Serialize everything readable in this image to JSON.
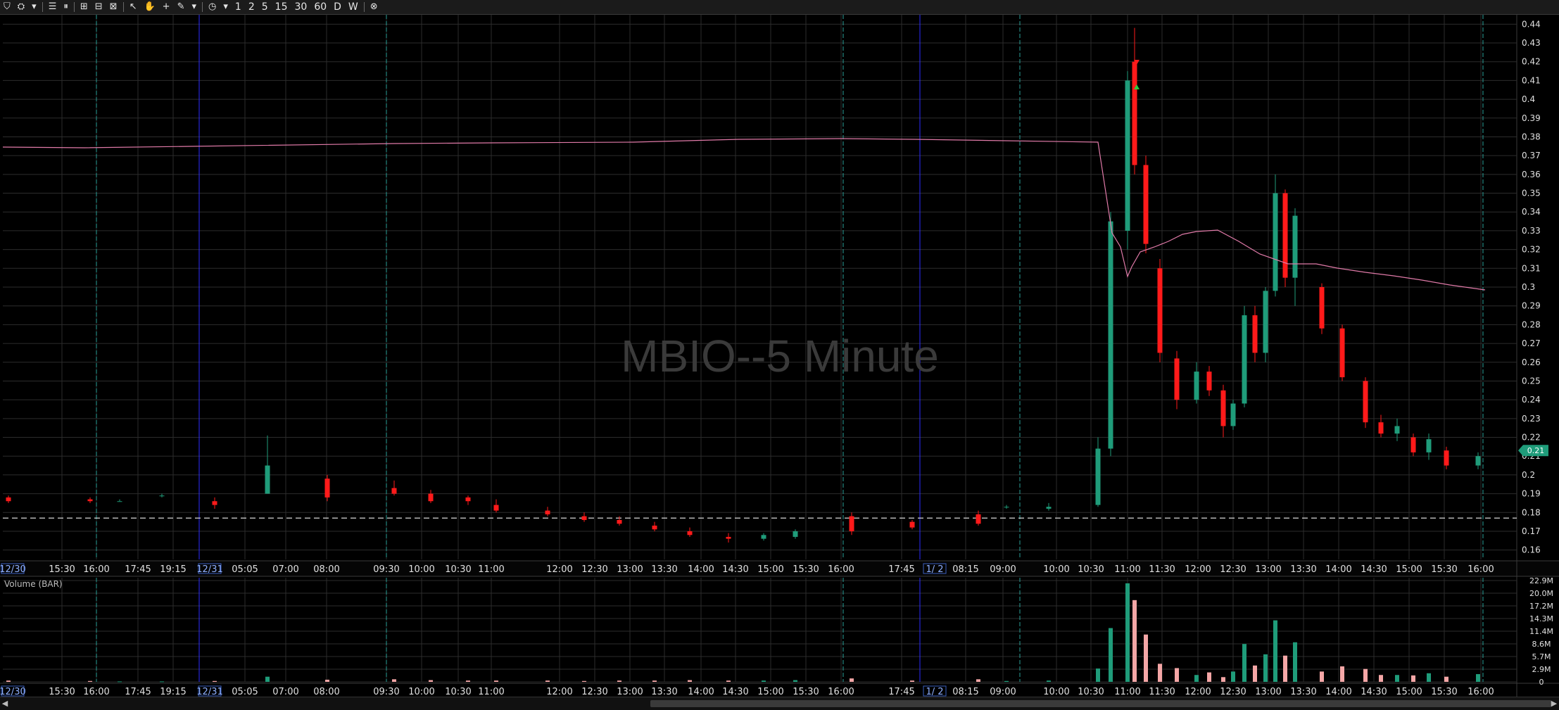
{
  "toolbar": {
    "items": [
      "⛉",
      "⛭",
      "▾",
      "☰",
      "⏸",
      "⊞",
      "⊟",
      "⊠",
      "↖",
      "✋",
      "+",
      "✎",
      "▾",
      "◷",
      "▾"
    ],
    "timeframes": [
      "1",
      "2",
      "5",
      "15",
      "30",
      "60",
      "D",
      "W"
    ],
    "close": "⊗"
  },
  "chart_title": "MBIO--5 Minute",
  "volume_label": "Volume (BAR)",
  "last_price_label": "0.21",
  "price_ticks": [
    "0.44",
    "0.43",
    "0.42",
    "0.41",
    "0.4",
    "0.39",
    "0.38",
    "0.37",
    "0.36",
    "0.35",
    "0.34",
    "0.33",
    "0.32",
    "0.31",
    "0.3",
    "0.29",
    "0.28",
    "0.27",
    "0.26",
    "0.25",
    "0.24",
    "0.23",
    "0.22",
    "0.21",
    "0.2",
    "0.19",
    "0.18",
    "0.17",
    "0.16"
  ],
  "volume_ticks": [
    "22.9M",
    "20.0M",
    "17.2M",
    "14.3M",
    "11.4M",
    "8.6M",
    "5.7M",
    "2.9M",
    "0"
  ],
  "time_labels": [
    {
      "t": "12/30",
      "boxed": true
    },
    {
      "t": "15:30"
    },
    {
      "t": "16:00"
    },
    {
      "t": "17:45"
    },
    {
      "t": "19:15"
    },
    {
      "t": "12/31",
      "boxed": true
    },
    {
      "t": "05:05"
    },
    {
      "t": "07:00"
    },
    {
      "t": "08:00"
    },
    {
      "t": "09:30"
    },
    {
      "t": "10:00"
    },
    {
      "t": "10:30"
    },
    {
      "t": "11:00"
    },
    {
      "t": "12:00"
    },
    {
      "t": "12:30"
    },
    {
      "t": "13:00"
    },
    {
      "t": "13:30"
    },
    {
      "t": "14:00"
    },
    {
      "t": "14:30"
    },
    {
      "t": "15:00"
    },
    {
      "t": "15:30"
    },
    {
      "t": "16:00"
    },
    {
      "t": "17:45"
    },
    {
      "t": "1/ 2",
      "boxed": true
    },
    {
      "t": "08:15"
    },
    {
      "t": "09:00"
    },
    {
      "t": "10:00"
    },
    {
      "t": "10:30"
    },
    {
      "t": "11:00"
    },
    {
      "t": "11:30"
    },
    {
      "t": "12:00"
    },
    {
      "t": "12:30"
    },
    {
      "t": "13:00"
    },
    {
      "t": "13:30"
    },
    {
      "t": "14:00"
    },
    {
      "t": "14:30"
    },
    {
      "t": "15:00"
    },
    {
      "t": "15:30"
    },
    {
      "t": "16:00"
    }
  ],
  "colors": {
    "up": "#1f9c7a",
    "down": "#ff1a1a",
    "vol_up": "#1f9c7a",
    "vol_down": "#f4a6a6",
    "vwap": "#e07aa8",
    "grid": "#2c2c2c",
    "session": "#2aa198",
    "day": "#2d2dff",
    "axis_text": "#e0e0e0",
    "watermark": "#3a3a3a"
  },
  "chart_data": {
    "type": "candlestick",
    "title": "MBIO--5 Minute",
    "ylim": [
      0.155,
      0.445
    ],
    "volume_ylim": [
      0,
      22.9
    ],
    "volume_unit": "M",
    "reference_price": 0.177,
    "candles": [
      {
        "t": "12/30 15:30",
        "o": 0.188,
        "h": 0.189,
        "l": 0.185,
        "c": 0.186
      },
      {
        "t": "12/30 16:00",
        "o": 0.187,
        "h": 0.188,
        "l": 0.185,
        "c": 0.186
      },
      {
        "t": "12/30 17:45",
        "o": 0.186,
        "h": 0.187,
        "l": 0.186,
        "c": 0.186
      },
      {
        "t": "12/30 19:15",
        "o": 0.189,
        "h": 0.19,
        "l": 0.188,
        "c": 0.189
      },
      {
        "t": "12/31 05:05",
        "o": 0.186,
        "h": 0.188,
        "l": 0.182,
        "c": 0.184
      },
      {
        "t": "12/31 07:00",
        "o": 0.19,
        "h": 0.221,
        "l": 0.19,
        "c": 0.205
      },
      {
        "t": "12/31 08:00",
        "o": 0.198,
        "h": 0.2,
        "l": 0.186,
        "c": 0.188
      },
      {
        "t": "12/31 09:30",
        "o": 0.193,
        "h": 0.197,
        "l": 0.189,
        "c": 0.19
      },
      {
        "t": "12/31 10:00",
        "o": 0.19,
        "h": 0.192,
        "l": 0.185,
        "c": 0.186
      },
      {
        "t": "12/31 10:30",
        "o": 0.188,
        "h": 0.189,
        "l": 0.184,
        "c": 0.186
      },
      {
        "t": "12/31 11:00",
        "o": 0.184,
        "h": 0.187,
        "l": 0.18,
        "c": 0.181
      },
      {
        "t": "12/31 12:00",
        "o": 0.181,
        "h": 0.183,
        "l": 0.178,
        "c": 0.179
      },
      {
        "t": "12/31 12:30",
        "o": 0.178,
        "h": 0.18,
        "l": 0.175,
        "c": 0.176
      },
      {
        "t": "12/31 13:00",
        "o": 0.176,
        "h": 0.178,
        "l": 0.173,
        "c": 0.174
      },
      {
        "t": "12/31 13:30",
        "o": 0.173,
        "h": 0.175,
        "l": 0.17,
        "c": 0.171
      },
      {
        "t": "12/31 14:00",
        "o": 0.17,
        "h": 0.172,
        "l": 0.167,
        "c": 0.168
      },
      {
        "t": "12/31 14:30",
        "o": 0.167,
        "h": 0.169,
        "l": 0.164,
        "c": 0.166
      },
      {
        "t": "12/31 15:00",
        "o": 0.166,
        "h": 0.169,
        "l": 0.165,
        "c": 0.168
      },
      {
        "t": "12/31 15:30",
        "o": 0.167,
        "h": 0.171,
        "l": 0.166,
        "c": 0.17
      },
      {
        "t": "12/31 16:00",
        "o": 0.178,
        "h": 0.18,
        "l": 0.168,
        "c": 0.17
      },
      {
        "t": "12/31 17:45",
        "o": 0.175,
        "h": 0.176,
        "l": 0.171,
        "c": 0.172
      },
      {
        "t": "1/2 08:15",
        "o": 0.179,
        "h": 0.181,
        "l": 0.173,
        "c": 0.174
      },
      {
        "t": "1/2 09:00",
        "o": 0.183,
        "h": 0.184,
        "l": 0.182,
        "c": 0.183
      },
      {
        "t": "1/2 10:00",
        "o": 0.182,
        "h": 0.185,
        "l": 0.181,
        "c": 0.183
      },
      {
        "t": "1/2 10:30",
        "o": 0.184,
        "h": 0.22,
        "l": 0.183,
        "c": 0.214
      },
      {
        "t": "1/2 10:45",
        "o": 0.214,
        "h": 0.34,
        "l": 0.21,
        "c": 0.335
      },
      {
        "t": "1/2 11:00",
        "o": 0.33,
        "h": 0.415,
        "l": 0.32,
        "c": 0.41
      },
      {
        "t": "1/2 11:05",
        "o": 0.42,
        "h": 0.438,
        "l": 0.36,
        "c": 0.365
      },
      {
        "t": "1/2 11:15",
        "o": 0.365,
        "h": 0.37,
        "l": 0.318,
        "c": 0.323
      },
      {
        "t": "1/2 11:30",
        "o": 0.31,
        "h": 0.315,
        "l": 0.26,
        "c": 0.265
      },
      {
        "t": "1/2 11:45",
        "o": 0.262,
        "h": 0.266,
        "l": 0.235,
        "c": 0.24
      },
      {
        "t": "1/2 12:00",
        "o": 0.24,
        "h": 0.26,
        "l": 0.238,
        "c": 0.255
      },
      {
        "t": "1/2 12:15",
        "o": 0.255,
        "h": 0.258,
        "l": 0.242,
        "c": 0.245
      },
      {
        "t": "1/2 12:30",
        "o": 0.245,
        "h": 0.248,
        "l": 0.22,
        "c": 0.226
      },
      {
        "t": "1/2 12:45",
        "o": 0.226,
        "h": 0.24,
        "l": 0.224,
        "c": 0.238
      },
      {
        "t": "1/2 13:00",
        "o": 0.238,
        "h": 0.29,
        "l": 0.236,
        "c": 0.285
      },
      {
        "t": "1/2 13:10",
        "o": 0.285,
        "h": 0.29,
        "l": 0.26,
        "c": 0.265
      },
      {
        "t": "1/2 13:20",
        "o": 0.265,
        "h": 0.3,
        "l": 0.26,
        "c": 0.298
      },
      {
        "t": "1/2 13:30",
        "o": 0.298,
        "h": 0.36,
        "l": 0.295,
        "c": 0.35
      },
      {
        "t": "1/2 13:40",
        "o": 0.35,
        "h": 0.352,
        "l": 0.3,
        "c": 0.305
      },
      {
        "t": "1/2 13:50",
        "o": 0.305,
        "h": 0.342,
        "l": 0.29,
        "c": 0.338
      },
      {
        "t": "1/2 14:00",
        "o": 0.3,
        "h": 0.302,
        "l": 0.275,
        "c": 0.278
      },
      {
        "t": "1/2 14:15",
        "o": 0.278,
        "h": 0.28,
        "l": 0.25,
        "c": 0.252
      },
      {
        "t": "1/2 14:30",
        "o": 0.25,
        "h": 0.252,
        "l": 0.225,
        "c": 0.228
      },
      {
        "t": "1/2 14:45",
        "o": 0.228,
        "h": 0.232,
        "l": 0.22,
        "c": 0.222
      },
      {
        "t": "1/2 15:00",
        "o": 0.222,
        "h": 0.23,
        "l": 0.218,
        "c": 0.226
      },
      {
        "t": "1/2 15:15",
        "o": 0.22,
        "h": 0.222,
        "l": 0.21,
        "c": 0.212
      },
      {
        "t": "1/2 15:30",
        "o": 0.212,
        "h": 0.222,
        "l": 0.208,
        "c": 0.219
      },
      {
        "t": "1/2 15:45",
        "o": 0.213,
        "h": 0.215,
        "l": 0.203,
        "c": 0.205
      },
      {
        "t": "1/2 16:00",
        "o": 0.205,
        "h": 0.212,
        "l": 0.203,
        "c": 0.21
      }
    ],
    "volume": [
      0.3,
      0.2,
      0.1,
      0.1,
      0.2,
      1.2,
      0.5,
      0.6,
      0.4,
      0.3,
      0.3,
      0.3,
      0.2,
      0.3,
      0.3,
      0.4,
      0.3,
      0.3,
      0.4,
      0.8,
      0.3,
      0.6,
      0.2,
      0.3,
      3.1,
      12.5,
      22.9,
      19.0,
      11.0,
      4.2,
      3.2,
      1.6,
      2.2,
      1.1,
      2.4,
      8.8,
      3.8,
      6.4,
      14.3,
      6.1,
      9.2,
      2.4,
      3.6,
      3.0,
      1.6,
      1.6,
      1.5,
      2.0,
      1.2,
      1.8
    ]
  }
}
